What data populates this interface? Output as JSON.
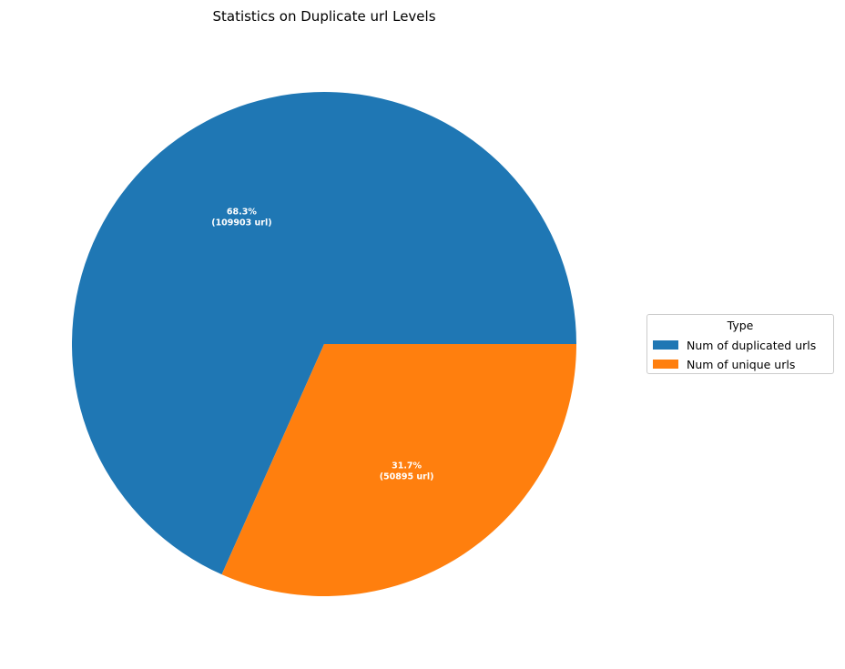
{
  "chart_data": {
    "type": "pie",
    "title": "Statistics on Duplicate url Levels",
    "categories": [
      "Num of duplicated urls",
      "Num of unique urls"
    ],
    "values": [
      109903,
      50895
    ],
    "percent_labels": [
      "68.3%",
      "31.7%"
    ],
    "count_labels": [
      "(109903 url)",
      "(50895 url)"
    ],
    "colors": [
      "#1f77b4",
      "#ff7f0e"
    ],
    "legend": {
      "title": "Type",
      "placement": "center-right",
      "entries": [
        "Num of duplicated urls",
        "Num of unique urls"
      ]
    }
  }
}
